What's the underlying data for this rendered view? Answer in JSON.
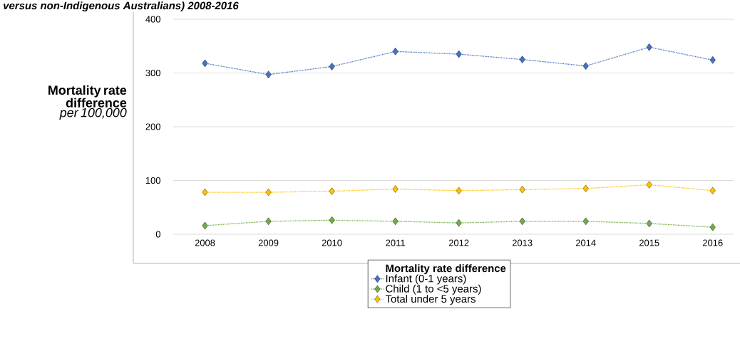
{
  "chart_data": {
    "type": "line",
    "title": "versus non-Indigenous Australians) 2008-2016",
    "ylabel": "**Mortality rate difference** *per 100,000*",
    "legend_title": "Mortality rate difference",
    "categories": [
      "2008",
      "2009",
      "2010",
      "2011",
      "2012",
      "2013",
      "2014",
      "2015",
      "2016"
    ],
    "series": [
      {
        "name": "Infant (0-1 years)",
        "color": "#4472c4",
        "values": [
          318,
          297,
          312,
          340,
          335,
          325,
          313,
          348,
          324
        ]
      },
      {
        "name": "Child (1 to <5 years)",
        "color": "#70ad47",
        "values": [
          16,
          24,
          26,
          24,
          21,
          24,
          24,
          20,
          13
        ]
      },
      {
        "name": "Total under 5 years",
        "color": "#ffc000",
        "values": [
          78,
          78,
          80,
          84,
          81,
          83,
          85,
          92,
          81
        ]
      }
    ],
    "ylim": [
      0,
      400
    ],
    "yticks": [
      0,
      100,
      200,
      300,
      400
    ],
    "grid": "y",
    "legend": "bottom",
    "marker": "diamond",
    "line_style": "dotted"
  }
}
